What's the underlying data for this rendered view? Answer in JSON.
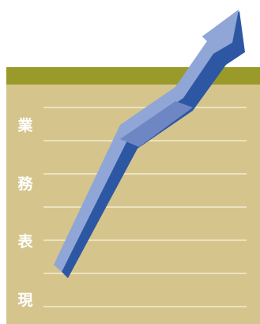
{
  "colors": {
    "olive": "#9a9a2a",
    "tan": "#d5c58c",
    "line": "#f3ecd2",
    "arrow_top": "#8fa6d6",
    "arrow_mid": "#6f86c4",
    "arrow_shadow": "#2e57a3",
    "text": "#ffffff"
  },
  "title_chars": [
    "業",
    "務",
    "表",
    "現"
  ]
}
